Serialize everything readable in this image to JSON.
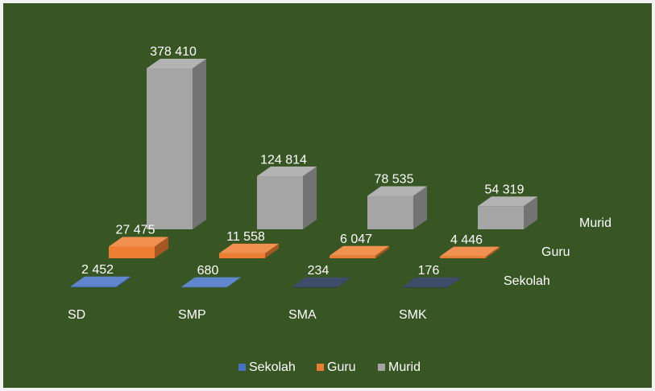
{
  "chart_data": {
    "type": "bar3d",
    "categories": [
      "SD",
      "SMP",
      "SMA",
      "SMK"
    ],
    "series": [
      {
        "name": "Sekolah",
        "color": "#4472c4",
        "colors": [
          "#4472c4",
          "#4472c4",
          "#1c2b4f",
          "#1c2b4f"
        ],
        "values": [
          2452,
          680,
          234,
          176
        ],
        "value_labels": [
          "2 452",
          "680",
          "234",
          "176"
        ]
      },
      {
        "name": "Guru",
        "color": "#ed7d31",
        "values": [
          27475,
          11558,
          6047,
          4446
        ],
        "value_labels": [
          "27 475",
          "11 558",
          "6 047",
          "4 446"
        ]
      },
      {
        "name": "Murid",
        "color": "#a5a5a5",
        "values": [
          378410,
          124814,
          78535,
          54319
        ],
        "value_labels": [
          "378 410",
          "124 814",
          "78 535",
          "54 319"
        ]
      }
    ],
    "background": "#375623"
  }
}
